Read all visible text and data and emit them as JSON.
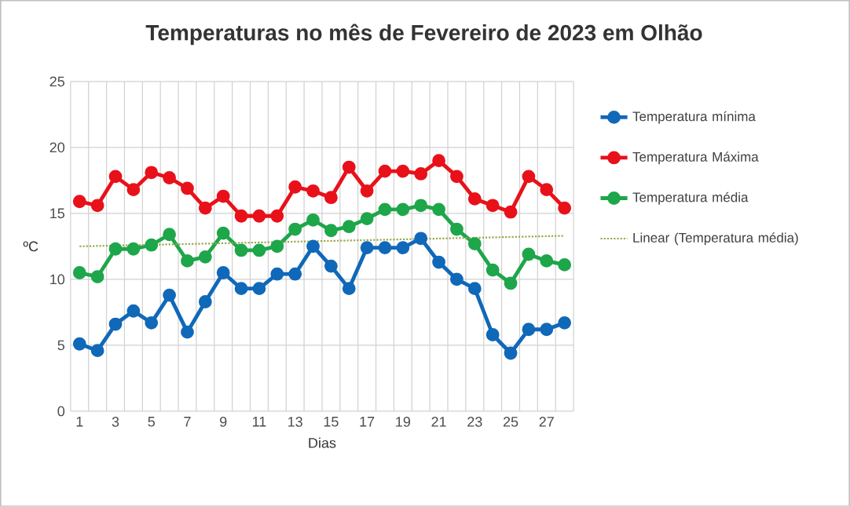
{
  "chart_data": {
    "type": "line",
    "title": "Temperaturas no mês de Fevereiro de 2023 em Olhão",
    "xlabel": "Dias",
    "ylabel": "ºC",
    "x": [
      1,
      2,
      3,
      4,
      5,
      6,
      7,
      8,
      9,
      10,
      11,
      12,
      13,
      14,
      15,
      16,
      17,
      18,
      19,
      20,
      21,
      22,
      23,
      24,
      25,
      26,
      27,
      28
    ],
    "xlim": [
      0.5,
      28.5
    ],
    "xticks": [
      1,
      3,
      5,
      7,
      9,
      11,
      13,
      15,
      17,
      19,
      21,
      23,
      25,
      27
    ],
    "ylim": [
      0,
      25
    ],
    "yticks": [
      0,
      5,
      10,
      15,
      20,
      25
    ],
    "grid": true,
    "legend": "right",
    "marker": "circle",
    "line_style": "solid",
    "series": [
      {
        "name": "Temperatura mínima",
        "color": "#1068b8",
        "values": [
          5.1,
          4.6,
          6.6,
          7.6,
          6.7,
          8.8,
          6.0,
          8.3,
          10.5,
          9.3,
          9.3,
          10.4,
          10.4,
          12.5,
          11.0,
          9.3,
          12.4,
          12.4,
          12.4,
          13.1,
          11.3,
          10.0,
          9.3,
          5.8,
          4.4,
          6.2,
          6.2,
          6.7
        ]
      },
      {
        "name": "Temperatura Máxima",
        "color": "#e8111a",
        "values": [
          15.9,
          15.6,
          17.8,
          16.8,
          18.1,
          17.7,
          16.9,
          15.4,
          16.3,
          14.8,
          14.8,
          14.8,
          17.0,
          16.7,
          16.2,
          18.5,
          16.7,
          18.2,
          18.2,
          18.0,
          19.0,
          17.8,
          16.1,
          15.6,
          15.1,
          17.8,
          16.8,
          15.4
        ]
      },
      {
        "name": "Temperatura média",
        "color": "#1ea64a",
        "values": [
          10.5,
          10.2,
          12.3,
          12.3,
          12.6,
          13.4,
          11.4,
          11.7,
          13.5,
          12.2,
          12.2,
          12.5,
          13.8,
          14.5,
          13.7,
          14.0,
          14.6,
          15.3,
          15.3,
          15.6,
          15.3,
          13.8,
          12.7,
          10.7,
          9.7,
          11.9,
          11.4,
          11.1
        ]
      },
      {
        "name": "Linear (Temperatura média)",
        "color": "#9ca64a",
        "type": "line",
        "x": [
          1,
          28
        ],
        "values": [
          12.5,
          13.3
        ],
        "marker": "none",
        "line_style": "dotted"
      }
    ]
  }
}
